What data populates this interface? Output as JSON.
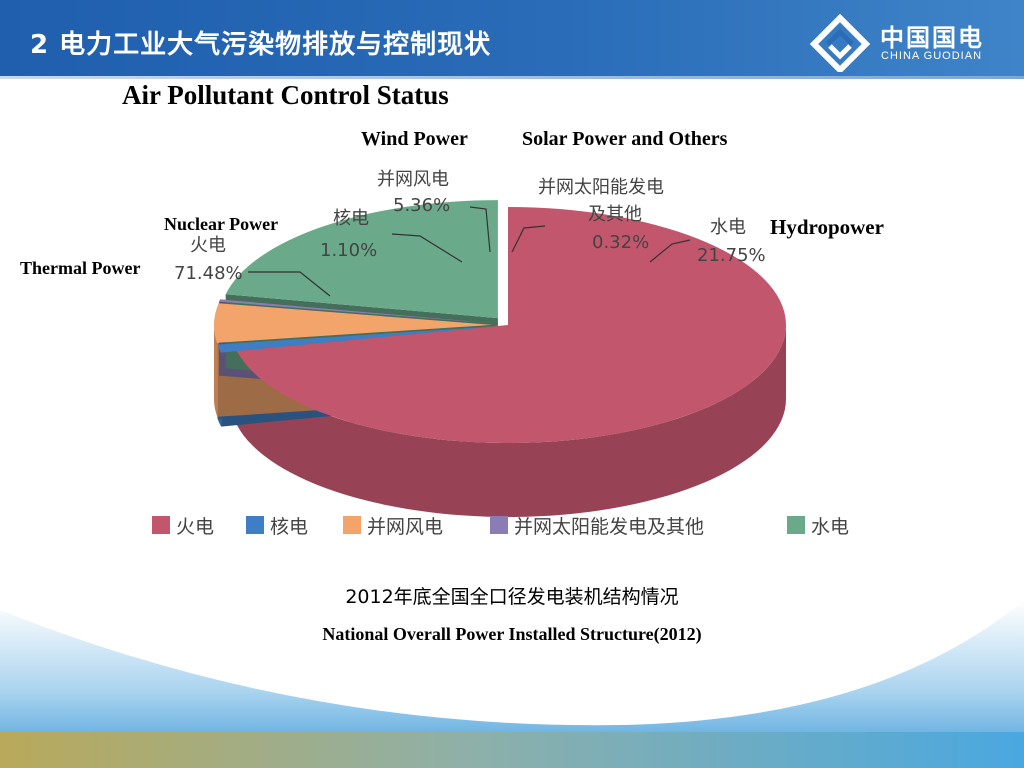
{
  "header": {
    "title": "2 电力工业大气污染物排放与控制现状",
    "logo_cn": "中国国电",
    "logo_en": "CHINA GUODIAN"
  },
  "slide": {
    "subtitle": "Air Pollutant Control Status",
    "caption_cn": "2012年底全国全口径发电装机结构情况",
    "caption_en": "National Overall Power Installed Structure(2012)"
  },
  "en_labels": {
    "wind": "Wind Power",
    "solar": "Solar Power and Others",
    "nuclear": "Nuclear Power",
    "hydro": "Hydropower",
    "thermal": "Thermal Power"
  },
  "chart_data": {
    "type": "pie",
    "series": [
      {
        "name": "火电",
        "value": 71.48,
        "label": "71.48%",
        "color": "#c2566d"
      },
      {
        "name": "核电",
        "value": 1.1,
        "label": "1.10%",
        "color": "#3f7ec4"
      },
      {
        "name": "并网风电",
        "value": 5.36,
        "label": "5.36%",
        "color": "#f2a46b"
      },
      {
        "name": "并网太阳能发电及其他",
        "value": 0.32,
        "label": "0.32%",
        "color": "#8c7cb5"
      },
      {
        "name": "水电",
        "value": 21.75,
        "label": "21.75%",
        "color": "#6aaa8a"
      }
    ],
    "legend": [
      "火电",
      "核电",
      "并网风电",
      "并网太阳能发电及其他",
      "水电"
    ],
    "legend_position": "bottom"
  },
  "theme": {
    "header_blue": "#2566b3"
  }
}
